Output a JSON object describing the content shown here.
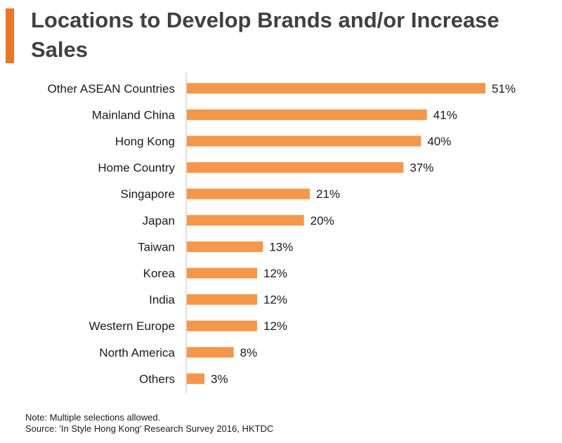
{
  "title": "Locations to Develop Brands and/or Increase Sales",
  "colors": {
    "accent": "#ee7623",
    "bar": "#f79646",
    "axis": "#bfbfbf",
    "title": "#404040"
  },
  "chart_data": {
    "type": "bar",
    "orientation": "horizontal",
    "categories": [
      "Other ASEAN Countries",
      "Mainland China",
      "Hong Kong",
      "Home Country",
      "Singapore",
      "Japan",
      "Taiwan",
      "Korea",
      "India",
      "Western Europe",
      "North America",
      "Others"
    ],
    "values": [
      51,
      41,
      40,
      37,
      21,
      20,
      13,
      12,
      12,
      12,
      8,
      3
    ],
    "value_labels": [
      "51%",
      "41%",
      "40%",
      "37%",
      "21%",
      "20%",
      "13%",
      "12%",
      "12%",
      "12%",
      "8%",
      "3%"
    ],
    "unit": "%",
    "xlim": [
      0,
      51
    ],
    "grid": false,
    "legend": "none"
  },
  "footnotes": {
    "note": "Note: Multiple selections allowed.",
    "source": "Source: 'In Style Hong Kong' Research Survey 2016, HKTDC"
  }
}
